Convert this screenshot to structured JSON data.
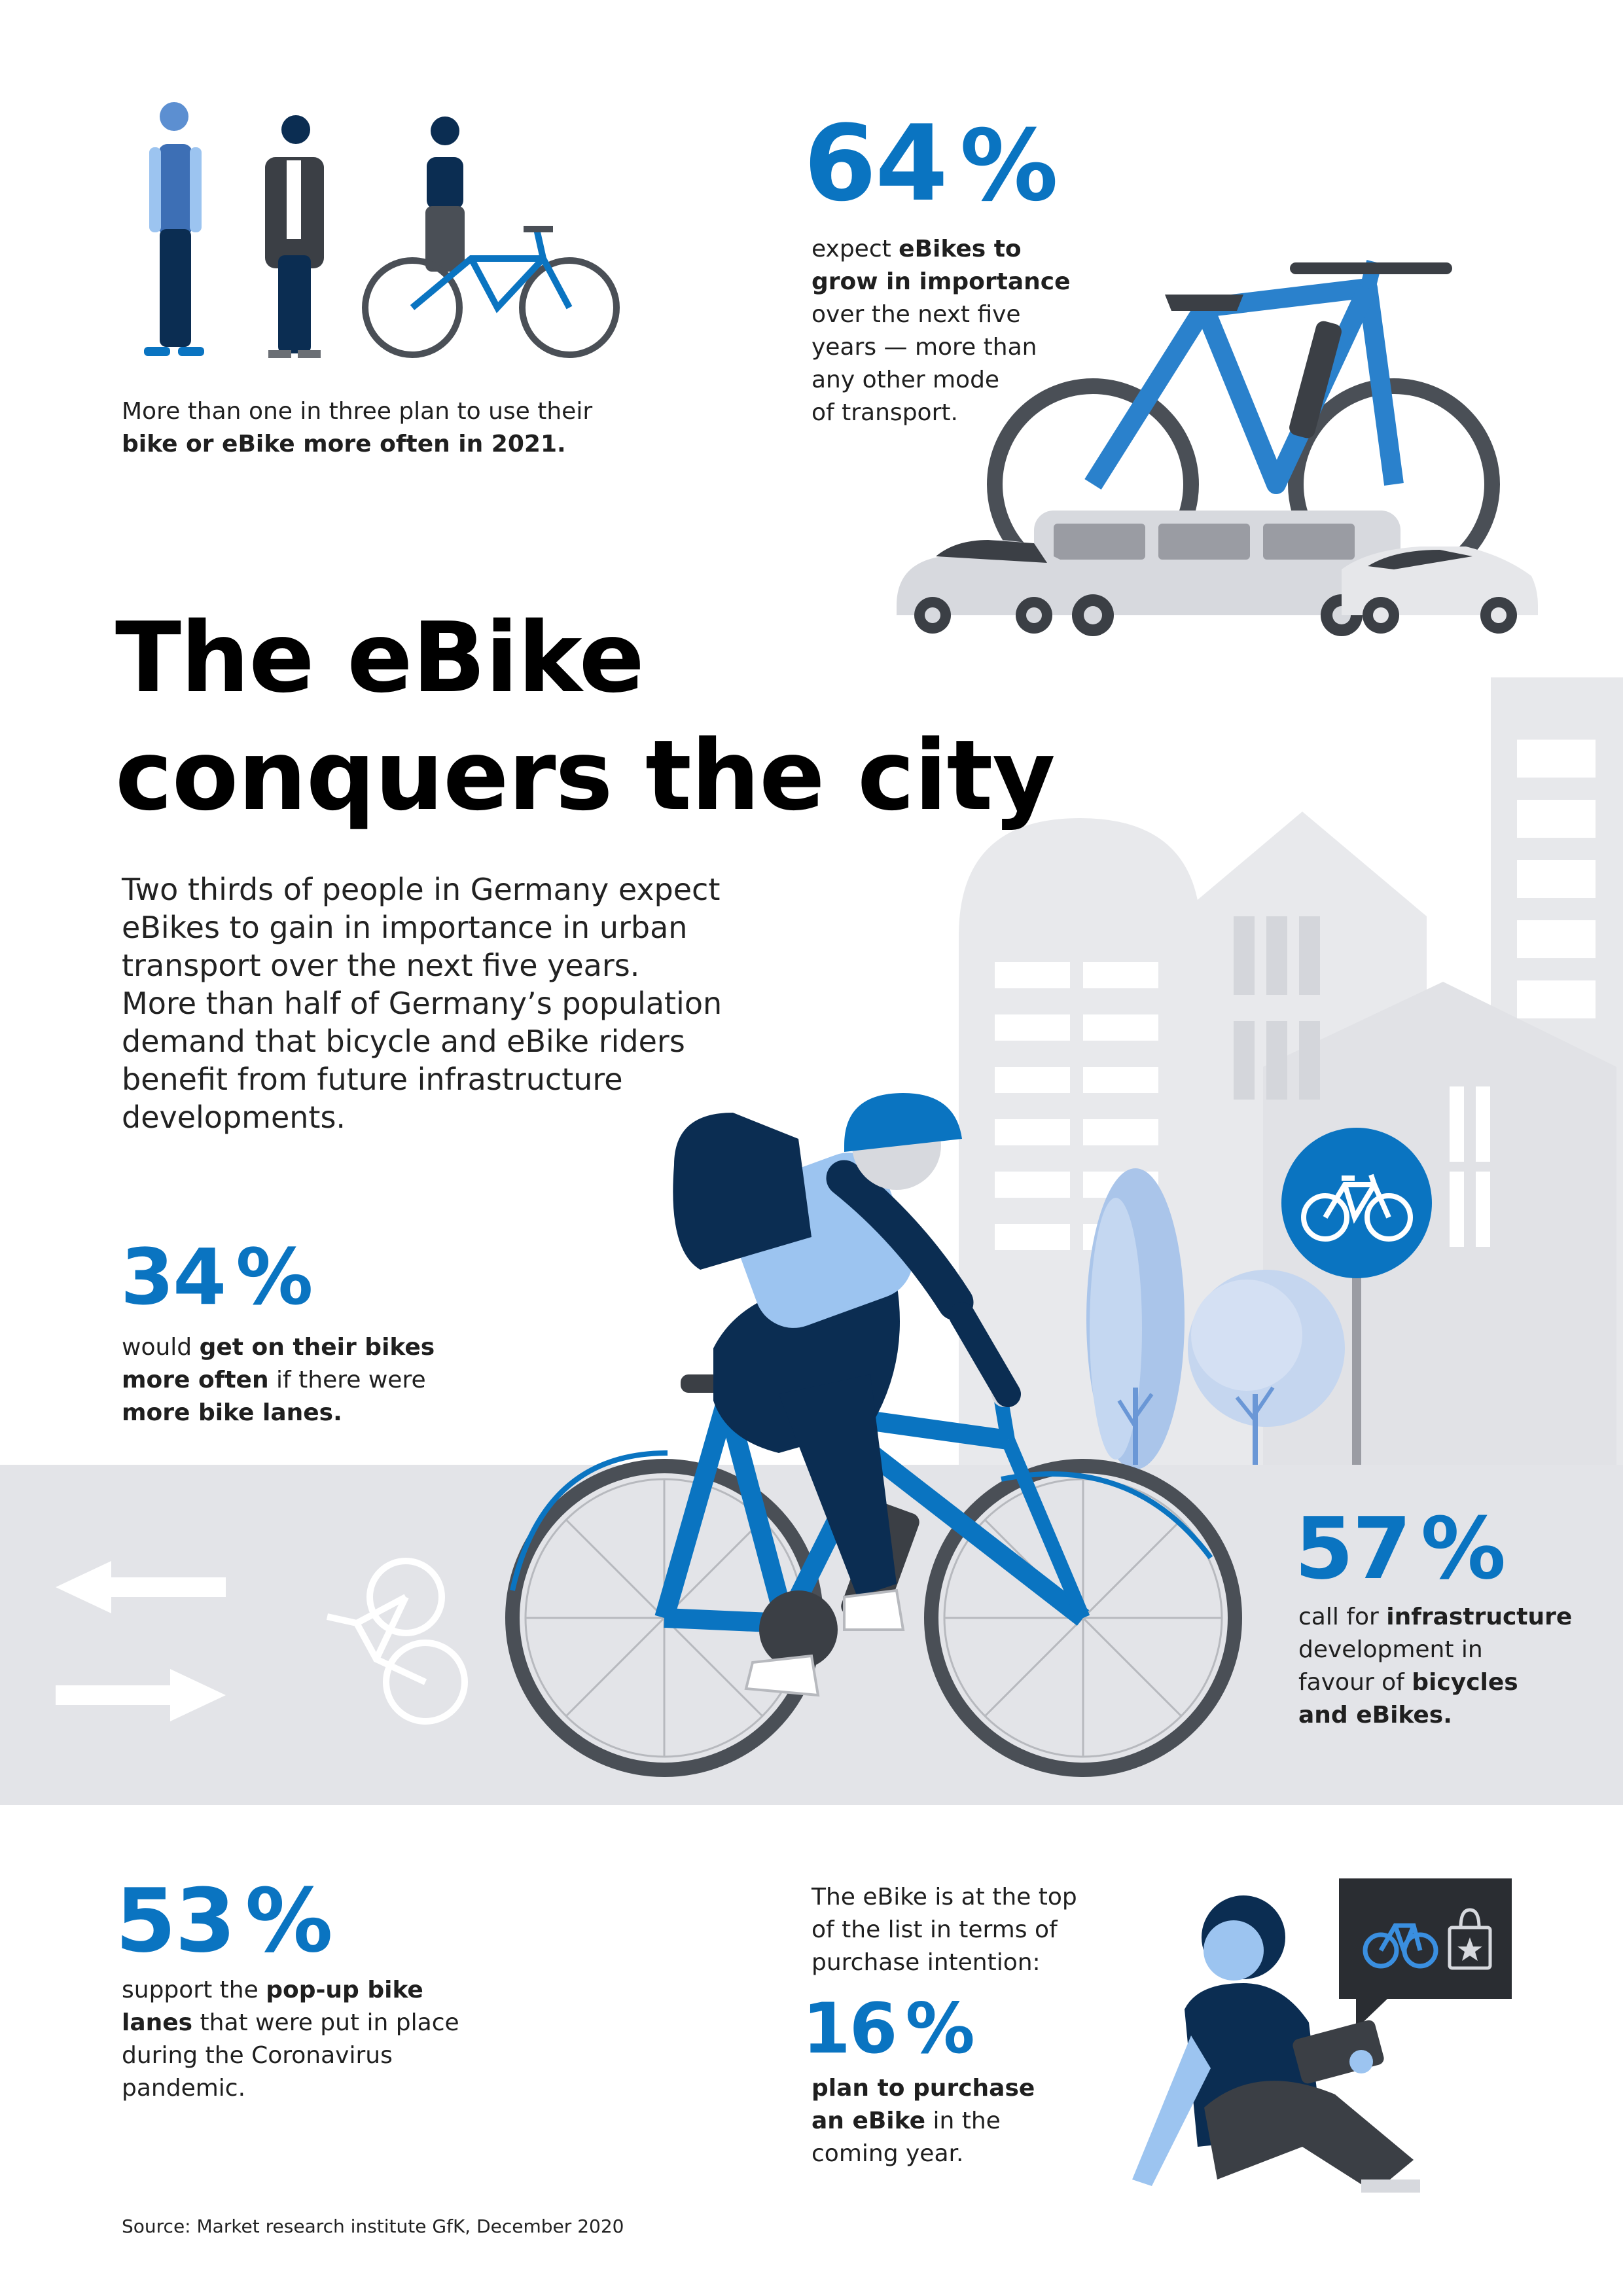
{
  "top_left": {
    "line1": "More than one in three plan to use their",
    "line2_bold": "bike or eBike more often in 2021."
  },
  "stat_64": {
    "number": "64",
    "unit": "%",
    "l1_plain": "expect ",
    "l1_bold": "eBikes to",
    "l2_bold": "grow in importance",
    "l3": "over the next five",
    "l4": "years — more than",
    "l5": "any other mode",
    "l6": "of transport."
  },
  "headline": {
    "line1": "The eBike",
    "line2": "conquers the city"
  },
  "intro": {
    "lines": [
      "Two thirds of people in Germany expect",
      "eBikes to gain in importance in urban",
      "transport over the next five years.",
      "More than half of Germany’s population",
      "demand that bicycle and eBike riders",
      "benefit from future infrastructure",
      "developments."
    ]
  },
  "stat_34": {
    "number": "34",
    "unit": "%",
    "l1_plain": "would ",
    "l1_bold": "get on their bikes",
    "l2_bold": "more often",
    "l2_plain": " if there were",
    "l3_bold": "more bike lanes."
  },
  "stat_57": {
    "number": "57",
    "unit": "%",
    "l1_plain": "call for ",
    "l1_bold": "infrastructure",
    "l2": "development in",
    "l3_plain": "favour of ",
    "l3_bold": "bicycles",
    "l4_bold": "and eBikes."
  },
  "stat_53": {
    "number": "53",
    "unit": "%",
    "l1_plain": "support the ",
    "l1_bold": "pop-up bike",
    "l2_bold": "lanes",
    "l2_plain": " that were put in place",
    "l3": "during the Coronavirus",
    "l4": "pandemic."
  },
  "stat_16": {
    "intro_l1": "The eBike is at the top",
    "intro_l2": "of the list in terms of",
    "intro_l3": "purchase intention:",
    "number": "16",
    "unit": "%",
    "l1_bold": "plan to purchase",
    "l2_bold": "an eBike",
    "l2_plain": " in the",
    "l3": "coming year."
  },
  "source": "Source: Market research institute GfK, December 2020",
  "colors": {
    "accent_blue": "#0a74c1",
    "navy": "#0b2d52",
    "light_blue": "#9cc4f0",
    "grey_bg": "#e3e4e8"
  },
  "icons": [
    "people-icon",
    "ebike-icon",
    "bus-icon",
    "car-icon",
    "bicycle-sign-icon",
    "arrow-left-icon",
    "arrow-right-icon",
    "shopping-bag-icon"
  ]
}
